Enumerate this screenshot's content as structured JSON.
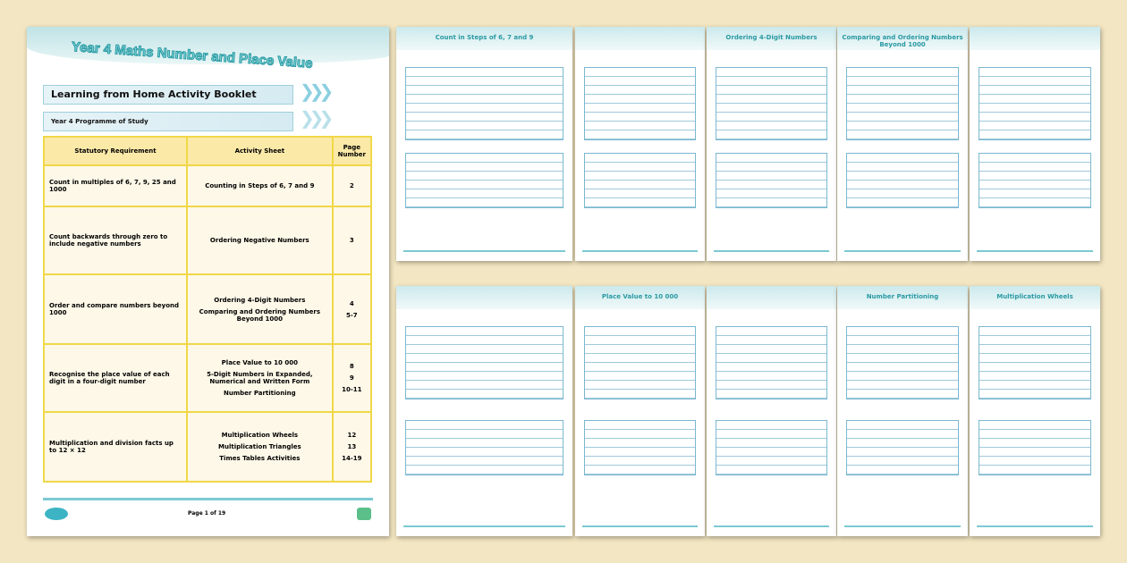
{
  "cover": {
    "title": "Year 4 Maths Number and Place Value",
    "subtitle": "Learning from Home Activity Booklet",
    "section": "Year 4 Programme of Study",
    "columns": [
      "Statutory Requirement",
      "Activity Sheet",
      "Page Number"
    ],
    "rows": [
      {
        "req": "Count in multiples of 6, 7, 9, 25 and 1000",
        "sheets": [
          {
            "name": "Counting in Steps of 6, 7 and 9",
            "page": "2"
          }
        ]
      },
      {
        "req": "Count backwards through zero to include negative numbers",
        "sheets": [
          {
            "name": "Ordering Negative Numbers",
            "page": "3"
          }
        ]
      },
      {
        "req": "Order and compare numbers beyond 1000",
        "sheets": [
          {
            "name": "Ordering 4-Digit Numbers",
            "page": "4"
          },
          {
            "name": "Comparing and Ordering Numbers Beyond 1000",
            "page": "5-7"
          }
        ]
      },
      {
        "req": "Recognise the place value of each digit in a four-digit number",
        "sheets": [
          {
            "name": "Place Value to 10 000",
            "page": "8"
          },
          {
            "name": "5-Digit Numbers in Expanded, Numerical and Written Form",
            "page": "9"
          },
          {
            "name": "Number Partitioning",
            "page": "10-11"
          }
        ]
      },
      {
        "req": "Multiplication and division facts up to 12 × 12",
        "sheets": [
          {
            "name": "Multiplication Wheels",
            "page": "12"
          },
          {
            "name": "Multiplication Triangles",
            "page": "13"
          },
          {
            "name": "Times Tables Activities",
            "page": "14-19"
          }
        ]
      }
    ],
    "footer_page": "Page 1 of 19"
  },
  "thumbnails": [
    {
      "title": "Count in Steps of 6, 7 and 9"
    },
    {
      "title": ""
    },
    {
      "title": "Ordering 4-Digit Numbers"
    },
    {
      "title": "Comparing and Ordering Numbers Beyond 1000"
    },
    {
      "title": ""
    },
    {
      "title": ""
    },
    {
      "title": "Place Value to 10 000"
    },
    {
      "title": ""
    },
    {
      "title": "Number Partitioning"
    },
    {
      "title": "Multiplication Wheels"
    }
  ],
  "colors": {
    "background": "#f3e6c2",
    "accent": "#3cb4c4",
    "table_border": "#f0d848",
    "table_header": "#fbe9a8"
  }
}
